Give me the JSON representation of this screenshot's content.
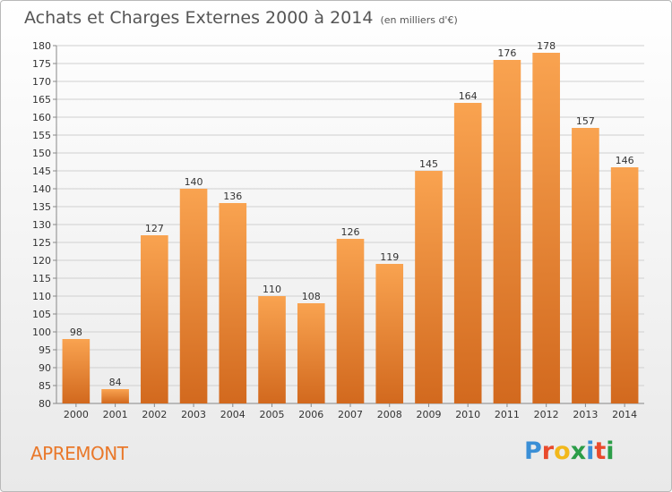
{
  "title": "Achats et Charges Externes 2000 à 2014",
  "subtitle": "(en milliers d'€)",
  "commune": "APREMONT",
  "logo": {
    "text": "Proxiti",
    "colors": [
      "#3a8fd6",
      "#e94a2c",
      "#f2b81b",
      "#2b9d48",
      "#3a8fd6",
      "#e94a2c",
      "#2b9d48"
    ]
  },
  "colors": {
    "bar_light": "#f9a350",
    "bar_dark": "#d2691e",
    "accent": "#e9782a"
  },
  "chart_data": {
    "type": "bar",
    "categories": [
      "2000",
      "2001",
      "2002",
      "2003",
      "2004",
      "2005",
      "2006",
      "2007",
      "2008",
      "2009",
      "2010",
      "2011",
      "2012",
      "2013",
      "2014"
    ],
    "values": [
      98,
      84,
      127,
      140,
      136,
      110,
      108,
      126,
      119,
      145,
      164,
      176,
      178,
      157,
      146
    ],
    "ylim": [
      80,
      180
    ],
    "yticks": [
      80,
      85,
      90,
      95,
      100,
      105,
      110,
      115,
      120,
      125,
      130,
      135,
      140,
      145,
      150,
      155,
      160,
      165,
      170,
      175,
      180
    ],
    "grid": true,
    "xlabel": "",
    "ylabel": ""
  }
}
